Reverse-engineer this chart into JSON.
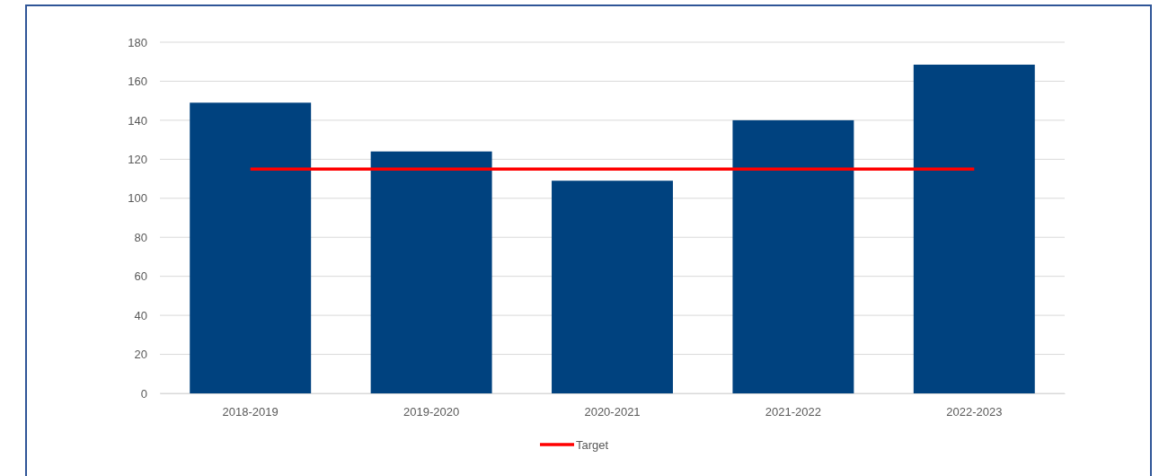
{
  "chart_data": {
    "type": "bar",
    "categories": [
      "2018-2019",
      "2019-2020",
      "2020-2021",
      "2021-2022",
      "2022-2023"
    ],
    "series": [
      {
        "type": "bar",
        "color": "#00427f",
        "values": [
          149,
          124,
          109,
          140,
          168.5
        ]
      },
      {
        "type": "line",
        "name": "Target",
        "color": "#ff0000",
        "values": [
          115,
          115,
          115,
          115,
          115
        ]
      }
    ],
    "ylim": [
      0,
      180
    ],
    "yticks": [
      0,
      20,
      40,
      60,
      80,
      100,
      120,
      140,
      160,
      180
    ],
    "grid": "y",
    "legend": "bottom",
    "marker": "none",
    "line_style": "solid"
  }
}
